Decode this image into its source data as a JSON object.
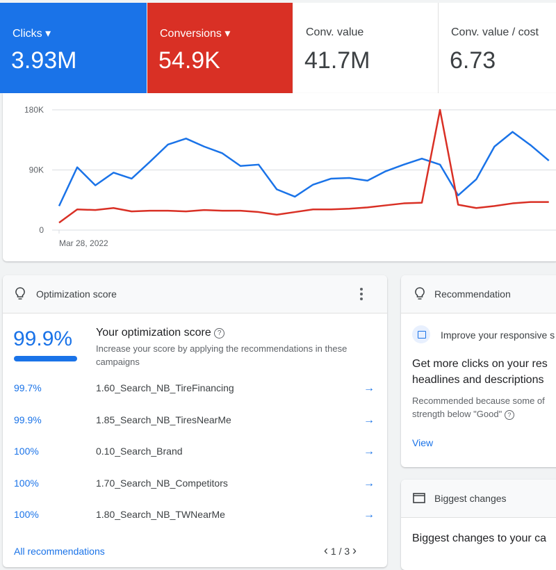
{
  "metrics": [
    {
      "label": "Clicks",
      "value": "3.93M"
    },
    {
      "label": "Conversions",
      "value": "54.9K"
    },
    {
      "label": "Conv. value",
      "value": "41.7M"
    },
    {
      "label": "Conv. value / cost",
      "value": "6.73"
    }
  ],
  "chart": {
    "ylim": [
      0,
      180000
    ],
    "yticks": [
      0,
      {
        "value": 90000,
        "label": "90K"
      },
      {
        "value": 180000,
        "label": "180K"
      }
    ],
    "x_label": "Mar 28, 2022",
    "series": [
      {
        "color": "#1a73e8",
        "values": [
          36000,
          94000,
          67000,
          86000,
          77000,
          102000,
          128000,
          137000,
          125000,
          115000,
          96000,
          98000,
          61000,
          50000,
          68000,
          77000,
          78000,
          74000,
          88000,
          98000,
          107000,
          98000,
          52000,
          76000,
          125000,
          147000,
          127000,
          104000
        ]
      },
      {
        "color": "#d93025",
        "values": [
          11000,
          31000,
          30000,
          33000,
          28000,
          29000,
          29000,
          28000,
          30000,
          29000,
          29000,
          27000,
          23000,
          27000,
          31000,
          31000,
          32000,
          34000,
          37000,
          40000,
          41000,
          180000,
          38000,
          33000,
          36000,
          40000,
          42000,
          42000
        ]
      }
    ]
  },
  "optimization": {
    "title": "Optimization score",
    "score": "99.9%",
    "heading": "Your optimization score",
    "description": "Increase your score by applying the recommendations in these campaigns",
    "rows": [
      {
        "score": "99.7%",
        "campaign": "1.60_Search_NB_TireFinancing"
      },
      {
        "score": "99.9%",
        "campaign": "1.85_Search_NB_TiresNearMe"
      },
      {
        "score": "100%",
        "campaign": "0.10_Search_Brand"
      },
      {
        "score": "100%",
        "campaign": "1.70_Search_NB_Competitors"
      },
      {
        "score": "100%",
        "campaign": "1.80_Search_NB_TWNearMe"
      }
    ],
    "link": "All recommendations",
    "pagination": "1 / 3"
  },
  "recommendation": {
    "title": "Recommendation",
    "item": "Improve your responsive s",
    "headline": [
      "Get more clicks on your res",
      "headlines and descriptions"
    ],
    "reason": [
      "Recommended because some of",
      "strength below \"Good\""
    ],
    "link": "View"
  },
  "biggest_changes": {
    "title": "Biggest changes",
    "heading": "Biggest changes to your ca"
  }
}
